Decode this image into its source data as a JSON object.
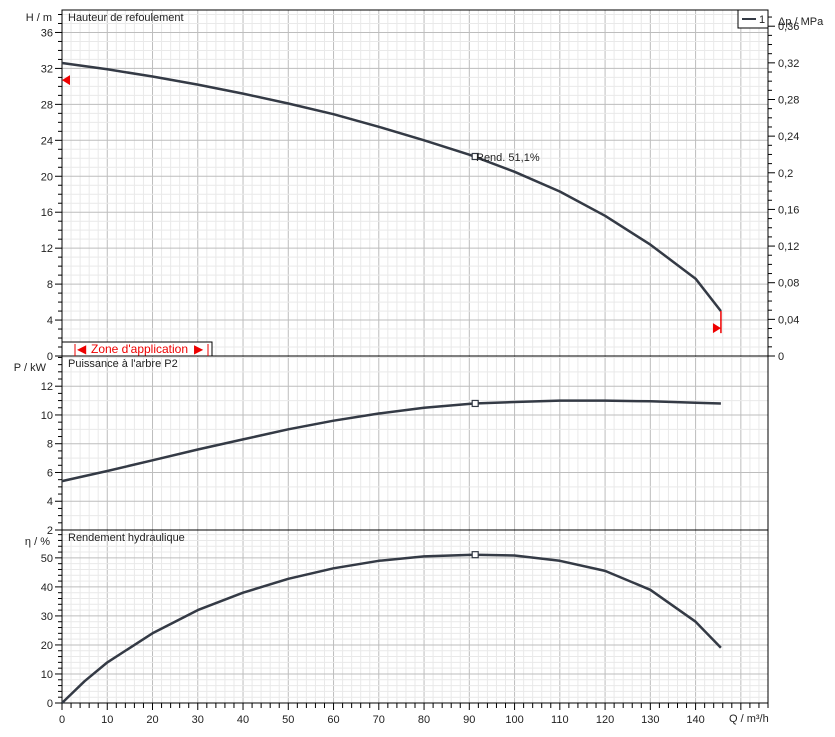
{
  "chart_data": [
    {
      "type": "line",
      "title": "Hauteur de refoulement",
      "ylabel": "H / m",
      "ylabel_right": "Δp / MPa",
      "xlim": [
        0,
        156
      ],
      "ylim": [
        0,
        38.5
      ],
      "yticks": [
        0,
        4,
        8,
        12,
        16,
        20,
        24,
        28,
        32,
        36
      ],
      "yticks_right": [
        "0",
        "0,04",
        "0,08",
        "0,12",
        "0,16",
        "0,2",
        "0,24",
        "0,28",
        "0,32",
        "0,36"
      ],
      "yticks_right_values": [
        0,
        0.04,
        0.08,
        0.12,
        0.16,
        0.2,
        0.24,
        0.28,
        0.32,
        0.36
      ],
      "grid": true,
      "legend": {
        "label": "1",
        "placement": "top-right"
      },
      "series": [
        {
          "name": "1",
          "x": [
            0,
            10,
            20,
            30,
            40,
            50,
            60,
            70,
            80,
            90,
            100,
            110,
            120,
            130,
            140,
            145.6
          ],
          "y": [
            32.6,
            31.9,
            31.1,
            30.2,
            29.2,
            28.1,
            26.9,
            25.5,
            24.0,
            22.4,
            20.5,
            18.3,
            15.6,
            12.4,
            8.6,
            5.0
          ]
        }
      ],
      "operating_point": {
        "x": 91.3,
        "y": 22.2,
        "label": "Rend.  51,1%"
      },
      "markers": {
        "left_H": 30.7,
        "right_Q": 145.6,
        "right_H": 3.1
      },
      "application_zone": {
        "label": "Zone d'application",
        "from": 2.5,
        "to": 32
      },
      "line_color": "#343a45",
      "marker_color": "#ee0000"
    },
    {
      "type": "line",
      "title": "Puissance à l'arbre P2",
      "ylabel": "P  / kW",
      "xlim": [
        0,
        156
      ],
      "ylim": [
        2,
        14.1
      ],
      "yticks": [
        2,
        4,
        6,
        8,
        10,
        12
      ],
      "grid": true,
      "series": [
        {
          "x": [
            0,
            10,
            20,
            30,
            40,
            50,
            60,
            70,
            80,
            91,
            100,
            110,
            120,
            130,
            140,
            145.6
          ],
          "y": [
            5.4,
            6.1,
            6.85,
            7.6,
            8.3,
            9.0,
            9.6,
            10.1,
            10.5,
            10.8,
            10.9,
            11.0,
            11.0,
            10.95,
            10.85,
            10.8
          ]
        }
      ],
      "operating_point": {
        "x": 91.3,
        "y": 10.8
      }
    },
    {
      "type": "line",
      "title": "Rendement hydraulique",
      "ylabel": "η / %",
      "xlabel": "Q / m³/h",
      "xlim": [
        0,
        156
      ],
      "ylim": [
        0,
        59.6
      ],
      "yticks": [
        0,
        10,
        20,
        30,
        40,
        50
      ],
      "xticks": [
        0,
        10,
        20,
        30,
        40,
        50,
        60,
        70,
        80,
        90,
        100,
        110,
        120,
        130,
        140
      ],
      "grid": true,
      "series": [
        {
          "x": [
            0,
            5,
            10,
            20,
            30,
            40,
            50,
            60,
            70,
            80,
            91,
            100,
            110,
            120,
            130,
            140,
            145.6
          ],
          "y": [
            0,
            7.5,
            14,
            24,
            32,
            38,
            42.8,
            46.4,
            49,
            50.5,
            51.1,
            50.8,
            49,
            45.5,
            39,
            28,
            19
          ]
        }
      ],
      "operating_point": {
        "x": 91.3,
        "y": 51.1
      }
    }
  ]
}
